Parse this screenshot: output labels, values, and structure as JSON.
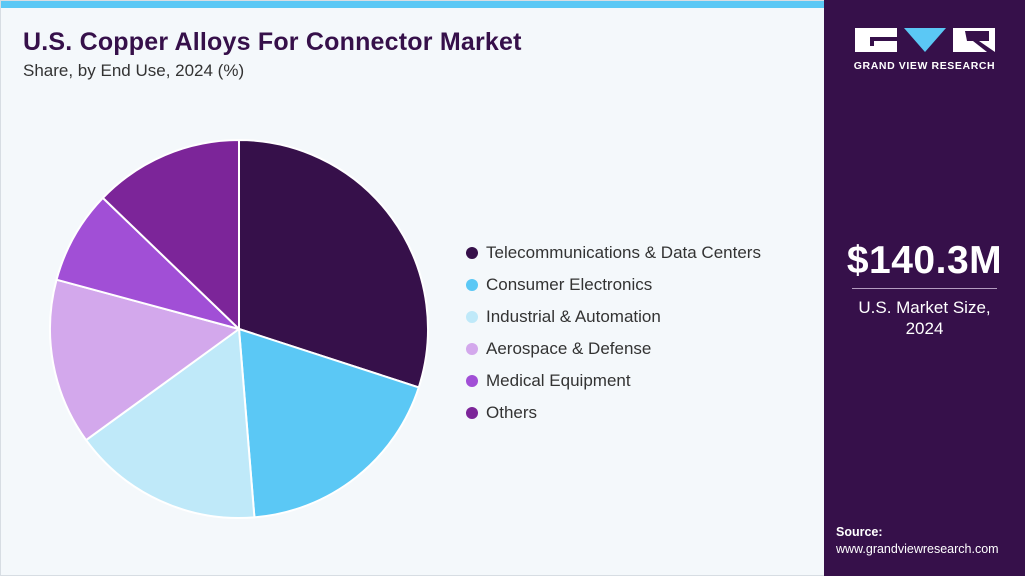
{
  "brand": {
    "name": "GRAND VIEW RESEARCH",
    "colors": {
      "panel": "#36104a",
      "accent": "#5bc8f5",
      "logo_mark": "#ffffff"
    }
  },
  "header": {
    "title": "U.S. Copper Alloys For Connector Market",
    "subtitle": "Share, by End Use, 2024 (%)"
  },
  "chart_data": {
    "type": "pie",
    "title": "U.S. Copper Alloys For Connector Market",
    "subtitle": "Share, by End Use, 2024 (%)",
    "start_angle_deg": 0,
    "direction": "clockwise",
    "legend_position": "right",
    "slices": [
      {
        "label": "Telecommunications & Data Centers",
        "value": 30.0,
        "color": "#36104a"
      },
      {
        "label": "Consumer Electronics",
        "value": 18.7,
        "color": "#5bc8f5"
      },
      {
        "label": "Industrial & Automation",
        "value": 16.3,
        "color": "#bfe9f9"
      },
      {
        "label": "Aerospace & Defense",
        "value": 14.2,
        "color": "#d3a8ec"
      },
      {
        "label": "Medical Equipment",
        "value": 8.0,
        "color": "#a14fd6"
      },
      {
        "label": "Others",
        "value": 12.8,
        "color": "#7c2599"
      }
    ]
  },
  "stat": {
    "value": "$140.3M",
    "label": "U.S. Market Size, 2024"
  },
  "source": {
    "label": "Source:",
    "url": "www.grandviewresearch.com"
  }
}
